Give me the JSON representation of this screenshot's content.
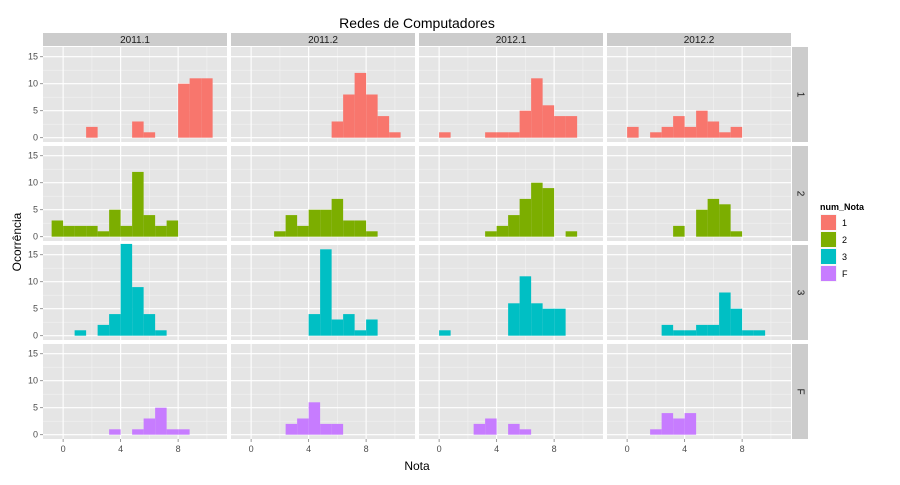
{
  "chart_data": {
    "type": "bar",
    "title": "Redes de Computadores",
    "xlabel": "Nota",
    "ylabel": "Ocorrência",
    "col_facets": [
      "2011.1",
      "2011.2",
      "2012.1",
      "2012.2"
    ],
    "row_facets": [
      "1",
      "2",
      "3",
      "F"
    ],
    "x_ticks": [
      "0",
      "4",
      "8"
    ],
    "x_tick_values": [
      0,
      4,
      8
    ],
    "y_ticks": [
      "0",
      "5",
      "10",
      "15"
    ],
    "y_tick_values": [
      0,
      5,
      10,
      15
    ],
    "xlim": [
      -1.4,
      11.4
    ],
    "ylim": [
      -0.8,
      16.8
    ],
    "grid": true,
    "bin_width": 0.8,
    "legend": {
      "title": "num_Nota",
      "position": "right",
      "entries": [
        {
          "label": "1",
          "color": "#F8766D"
        },
        {
          "label": "2",
          "color": "#7CAE00"
        },
        {
          "label": "3",
          "color": "#00BFC4"
        },
        {
          "label": "F",
          "color": "#C77CFF"
        }
      ]
    },
    "panels": [
      {
        "row": "1",
        "col": "2011.1",
        "bars": [
          {
            "x": 2.0,
            "y": 2
          },
          {
            "x": 5.2,
            "y": 3
          },
          {
            "x": 6.0,
            "y": 1
          },
          {
            "x": 8.4,
            "y": 10
          },
          {
            "x": 9.2,
            "y": 11
          },
          {
            "x": 10.0,
            "y": 11
          }
        ]
      },
      {
        "row": "1",
        "col": "2011.2",
        "bars": [
          {
            "x": 6.0,
            "y": 3
          },
          {
            "x": 6.8,
            "y": 8
          },
          {
            "x": 7.6,
            "y": 12
          },
          {
            "x": 8.4,
            "y": 8
          },
          {
            "x": 9.2,
            "y": 4
          },
          {
            "x": 10.0,
            "y": 1
          }
        ]
      },
      {
        "row": "1",
        "col": "2012.1",
        "bars": [
          {
            "x": 0.4,
            "y": 1
          },
          {
            "x": 3.6,
            "y": 1
          },
          {
            "x": 4.4,
            "y": 1
          },
          {
            "x": 5.2,
            "y": 1
          },
          {
            "x": 6.0,
            "y": 5
          },
          {
            "x": 6.8,
            "y": 11
          },
          {
            "x": 7.6,
            "y": 6
          },
          {
            "x": 8.4,
            "y": 4
          },
          {
            "x": 9.2,
            "y": 4
          }
        ]
      },
      {
        "row": "1",
        "col": "2012.2",
        "bars": [
          {
            "x": 0.4,
            "y": 2
          },
          {
            "x": 2.0,
            "y": 1
          },
          {
            "x": 2.8,
            "y": 2
          },
          {
            "x": 3.6,
            "y": 4
          },
          {
            "x": 4.4,
            "y": 2
          },
          {
            "x": 5.2,
            "y": 5
          },
          {
            "x": 6.0,
            "y": 3
          },
          {
            "x": 6.8,
            "y": 1
          },
          {
            "x": 7.6,
            "y": 2
          }
        ]
      },
      {
        "row": "2",
        "col": "2011.1",
        "bars": [
          {
            "x": -0.4,
            "y": 3
          },
          {
            "x": 0.4,
            "y": 2
          },
          {
            "x": 1.2,
            "y": 2
          },
          {
            "x": 2.0,
            "y": 2
          },
          {
            "x": 2.8,
            "y": 1
          },
          {
            "x": 3.6,
            "y": 5
          },
          {
            "x": 4.4,
            "y": 2
          },
          {
            "x": 5.2,
            "y": 12
          },
          {
            "x": 6.0,
            "y": 4
          },
          {
            "x": 6.8,
            "y": 2
          },
          {
            "x": 7.6,
            "y": 3
          }
        ]
      },
      {
        "row": "2",
        "col": "2011.2",
        "bars": [
          {
            "x": 2.0,
            "y": 1
          },
          {
            "x": 2.8,
            "y": 4
          },
          {
            "x": 3.6,
            "y": 2
          },
          {
            "x": 4.4,
            "y": 5
          },
          {
            "x": 5.2,
            "y": 5
          },
          {
            "x": 6.0,
            "y": 7
          },
          {
            "x": 6.8,
            "y": 3
          },
          {
            "x": 7.6,
            "y": 3
          },
          {
            "x": 8.4,
            "y": 1
          }
        ]
      },
      {
        "row": "2",
        "col": "2012.1",
        "bars": [
          {
            "x": 3.6,
            "y": 1
          },
          {
            "x": 4.4,
            "y": 2
          },
          {
            "x": 5.2,
            "y": 4
          },
          {
            "x": 6.0,
            "y": 7
          },
          {
            "x": 6.8,
            "y": 10
          },
          {
            "x": 7.6,
            "y": 9
          },
          {
            "x": 9.2,
            "y": 1
          }
        ]
      },
      {
        "row": "2",
        "col": "2012.2",
        "bars": [
          {
            "x": 3.6,
            "y": 2
          },
          {
            "x": 5.2,
            "y": 5
          },
          {
            "x": 6.0,
            "y": 7
          },
          {
            "x": 6.8,
            "y": 6
          },
          {
            "x": 7.6,
            "y": 1
          }
        ]
      },
      {
        "row": "3",
        "col": "2011.1",
        "bars": [
          {
            "x": 1.2,
            "y": 1
          },
          {
            "x": 2.8,
            "y": 2
          },
          {
            "x": 3.6,
            "y": 4
          },
          {
            "x": 4.4,
            "y": 17
          },
          {
            "x": 5.2,
            "y": 9
          },
          {
            "x": 6.0,
            "y": 4
          },
          {
            "x": 6.8,
            "y": 1
          }
        ]
      },
      {
        "row": "3",
        "col": "2011.2",
        "bars": [
          {
            "x": 4.4,
            "y": 4
          },
          {
            "x": 5.2,
            "y": 16
          },
          {
            "x": 6.0,
            "y": 3
          },
          {
            "x": 6.8,
            "y": 4
          },
          {
            "x": 7.6,
            "y": 1
          },
          {
            "x": 8.4,
            "y": 3
          }
        ]
      },
      {
        "row": "3",
        "col": "2012.1",
        "bars": [
          {
            "x": 0.4,
            "y": 1
          },
          {
            "x": 5.2,
            "y": 6
          },
          {
            "x": 6.0,
            "y": 11
          },
          {
            "x": 6.8,
            "y": 6
          },
          {
            "x": 7.6,
            "y": 5
          },
          {
            "x": 8.4,
            "y": 5
          }
        ]
      },
      {
        "row": "3",
        "col": "2012.2",
        "bars": [
          {
            "x": 2.8,
            "y": 2
          },
          {
            "x": 3.6,
            "y": 1
          },
          {
            "x": 4.4,
            "y": 1
          },
          {
            "x": 5.2,
            "y": 2
          },
          {
            "x": 6.0,
            "y": 2
          },
          {
            "x": 6.8,
            "y": 8
          },
          {
            "x": 7.6,
            "y": 5
          },
          {
            "x": 8.4,
            "y": 1
          },
          {
            "x": 9.2,
            "y": 1
          }
        ]
      },
      {
        "row": "F",
        "col": "2011.1",
        "bars": [
          {
            "x": 3.6,
            "y": 1
          },
          {
            "x": 5.2,
            "y": 1
          },
          {
            "x": 6.0,
            "y": 3
          },
          {
            "x": 6.8,
            "y": 5
          },
          {
            "x": 7.6,
            "y": 1
          },
          {
            "x": 8.4,
            "y": 1
          }
        ]
      },
      {
        "row": "F",
        "col": "2011.2",
        "bars": [
          {
            "x": 2.8,
            "y": 2
          },
          {
            "x": 3.6,
            "y": 3
          },
          {
            "x": 4.4,
            "y": 6
          },
          {
            "x": 5.2,
            "y": 2
          },
          {
            "x": 6.0,
            "y": 2
          }
        ]
      },
      {
        "row": "F",
        "col": "2012.1",
        "bars": [
          {
            "x": 2.8,
            "y": 2
          },
          {
            "x": 3.6,
            "y": 3
          },
          {
            "x": 5.2,
            "y": 2
          },
          {
            "x": 6.0,
            "y": 1
          }
        ]
      },
      {
        "row": "F",
        "col": "2012.2",
        "bars": [
          {
            "x": 2.0,
            "y": 1
          },
          {
            "x": 2.8,
            "y": 4
          },
          {
            "x": 3.6,
            "y": 3
          },
          {
            "x": 4.4,
            "y": 4
          }
        ]
      }
    ]
  }
}
